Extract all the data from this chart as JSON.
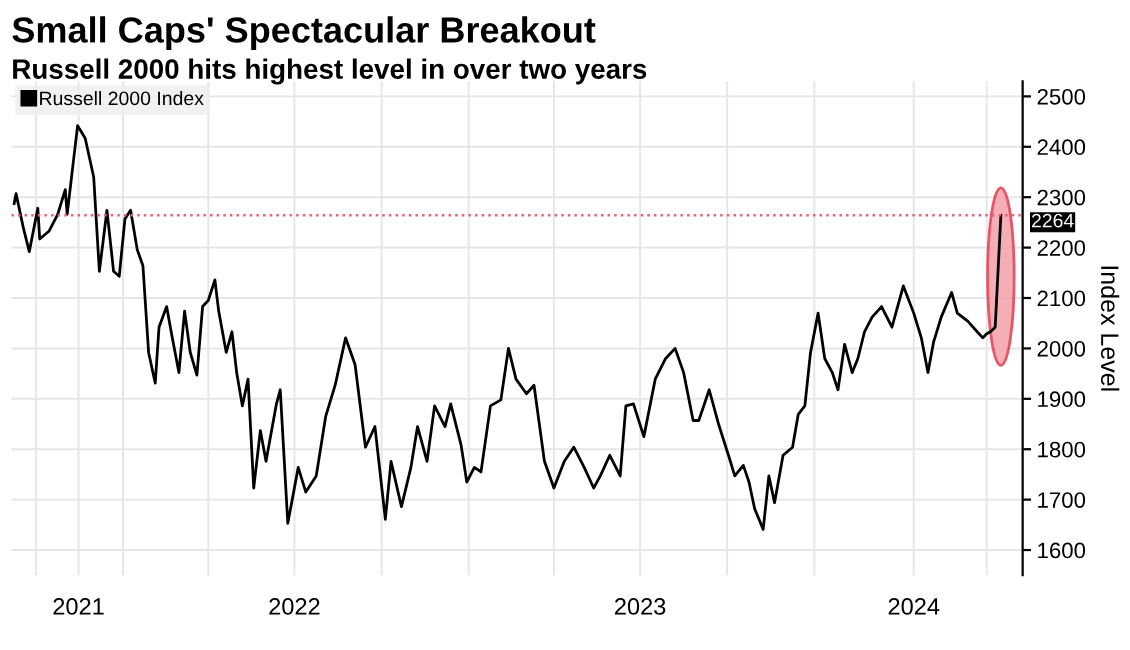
{
  "chart_data": {
    "type": "line",
    "title": "Small Caps' Spectacular Breakout",
    "subtitle": "Russell 2000 hits highest level in over two years",
    "ylabel": "Index Level",
    "x": [
      "2021-09-08",
      "2021-09-10",
      "2021-09-18",
      "2021-09-24",
      "2021-10-03",
      "2021-10-05",
      "2021-10-15",
      "2021-10-24",
      "2021-11-01",
      "2021-11-03",
      "2021-11-14",
      "2021-11-22",
      "2021-12-01",
      "2021-12-07",
      "2021-12-15",
      "2021-12-22",
      "2021-12-28",
      "2022-01-03",
      "2022-01-09",
      "2022-01-16",
      "2022-01-22",
      "2022-01-28",
      "2022-02-04",
      "2022-02-08",
      "2022-02-16",
      "2022-02-22",
      "2022-03-01",
      "2022-03-07",
      "2022-03-13",
      "2022-03-20",
      "2022-03-26",
      "2022-04-01",
      "2022-04-08",
      "2022-04-12",
      "2022-04-20",
      "2022-04-26",
      "2022-05-01",
      "2022-05-07",
      "2022-05-13",
      "2022-05-19",
      "2022-05-26",
      "2022-06-01",
      "2022-06-12",
      "2022-06-16",
      "2022-06-24",
      "2022-07-05",
      "2022-07-13",
      "2022-07-24",
      "2022-08-03",
      "2022-08-13",
      "2022-08-24",
      "2022-09-03",
      "2022-09-14",
      "2022-09-24",
      "2022-10-05",
      "2022-10-11",
      "2022-10-22",
      "2022-11-01",
      "2022-11-08",
      "2022-11-18",
      "2022-11-26",
      "2022-12-07",
      "2022-12-13",
      "2022-12-24",
      "2022-12-30",
      "2023-01-07",
      "2023-01-14",
      "2023-01-24",
      "2023-02-04",
      "2023-02-12",
      "2023-02-20",
      "2023-03-03",
      "2023-03-11",
      "2023-03-22",
      "2023-04-01",
      "2023-04-12",
      "2023-04-22",
      "2023-05-03",
      "2023-05-13",
      "2023-05-20",
      "2023-05-30",
      "2023-06-10",
      "2023-06-16",
      "2023-06-24",
      "2023-07-05",
      "2023-07-17",
      "2023-07-28",
      "2023-08-07",
      "2023-08-16",
      "2023-08-26",
      "2023-09-01",
      "2023-09-12",
      "2023-09-22",
      "2023-10-03",
      "2023-10-09",
      "2023-10-18",
      "2023-10-24",
      "2023-10-30",
      "2023-11-08",
      "2023-11-14",
      "2023-11-20",
      "2023-11-29",
      "2023-12-09",
      "2023-12-15",
      "2023-12-22",
      "2023-12-28",
      "2024-01-05",
      "2024-01-12",
      "2024-01-20",
      "2024-01-26",
      "2024-02-02",
      "2024-02-10",
      "2024-02-16",
      "2024-02-23",
      "2024-03-02",
      "2024-03-12",
      "2024-03-23",
      "2024-04-04",
      "2024-04-15",
      "2024-04-23",
      "2024-04-30",
      "2024-05-06",
      "2024-05-14",
      "2024-05-25",
      "2024-05-31",
      "2024-06-11",
      "2024-06-21",
      "2024-06-27",
      "2024-07-01",
      "2024-07-05",
      "2024-07-10",
      "2024-07-16"
    ],
    "series": [
      {
        "name": "Russell 2000 Index",
        "color": "#000000",
        "values": [
          2287,
          2307,
          2237,
          2192,
          2278,
          2217,
          2233,
          2266,
          2315,
          2266,
          2442,
          2417,
          2340,
          2153,
          2274,
          2153,
          2143,
          2257,
          2274,
          2196,
          2164,
          1992,
          1931,
          2042,
          2083,
          2021,
          1952,
          2074,
          1992,
          1947,
          2083,
          2095,
          2136,
          2074,
          1992,
          2033,
          1952,
          1886,
          1939,
          1723,
          1837,
          1776,
          1890,
          1918,
          1653,
          1764,
          1715,
          1747,
          1865,
          1927,
          2021,
          1968,
          1804,
          1845,
          1661,
          1776,
          1686,
          1764,
          1845,
          1776,
          1886,
          1845,
          1890,
          1808,
          1735,
          1764,
          1755,
          1886,
          1898,
          2000,
          1939,
          1910,
          1927,
          1776,
          1723,
          1776,
          1804,
          1764,
          1723,
          1747,
          1788,
          1747,
          1886,
          1890,
          1825,
          1939,
          1980,
          2000,
          1952,
          1857,
          1857,
          1918,
          1849,
          1784,
          1747,
          1768,
          1735,
          1682,
          1641,
          1747,
          1694,
          1788,
          1804,
          1869,
          1886,
          1992,
          2070,
          1980,
          1952,
          1918,
          2008,
          1952,
          1980,
          2033,
          2062,
          2083,
          2042,
          2124,
          2070,
          2021,
          1952,
          2013,
          2062,
          2111,
          2070,
          2054,
          2033,
          2021,
          2029,
          2033,
          2042,
          2264
        ]
      }
    ],
    "xlim": [
      "2021-09-05",
      "2024-08-08"
    ],
    "xticks": [
      {
        "value": "2021-11-15",
        "label": "2021"
      },
      {
        "value": "2022-07-01",
        "label": "2022"
      },
      {
        "value": "2023-07-01",
        "label": "2023"
      },
      {
        "value": "2024-04-15",
        "label": "2024"
      },
      {
        "value": "2021-10-01",
        "label": null
      },
      {
        "value": "2022-01-01",
        "label": null
      },
      {
        "value": "2022-04-01",
        "label": null
      },
      {
        "value": "2022-10-01",
        "label": null
      },
      {
        "value": "2023-01-01",
        "label": null
      },
      {
        "value": "2023-04-01",
        "label": null
      },
      {
        "value": "2023-10-01",
        "label": null
      },
      {
        "value": "2024-01-01",
        "label": null
      },
      {
        "value": "2024-07-01",
        "label": null
      }
    ],
    "ylim": [
      1550,
      2530
    ],
    "yticks": [
      1600,
      1700,
      1800,
      1900,
      2000,
      2100,
      2200,
      2300,
      2400,
      2500
    ],
    "ref_lines": [
      {
        "axis": "y",
        "value": 2264,
        "label": "2264",
        "color": "#e8627a",
        "line_style": "dotted"
      }
    ],
    "grid": true,
    "legend": "top left",
    "marker": "none",
    "line_style": "solid"
  }
}
